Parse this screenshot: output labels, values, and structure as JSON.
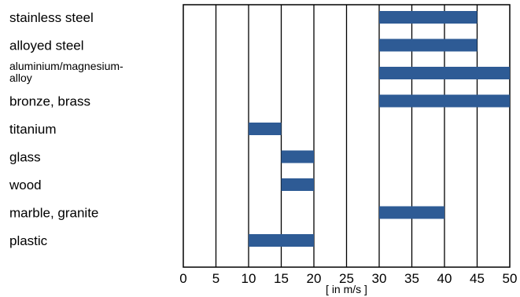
{
  "chart_data": {
    "type": "bar",
    "orientation": "horizontal",
    "bar_style": "range",
    "categories": [
      "stainless steel",
      "alloyed steel",
      "aluminium/magnesium-alloy",
      "bronze, brass",
      "titanium",
      "glass",
      "wood",
      "marble, granite",
      "plastic"
    ],
    "ranges": [
      [
        30,
        45
      ],
      [
        30,
        45
      ],
      [
        30,
        50
      ],
      [
        30,
        50
      ],
      [
        10,
        15
      ],
      [
        15,
        20
      ],
      [
        15,
        20
      ],
      [
        30,
        40
      ],
      [
        10,
        20
      ]
    ],
    "x_ticks": [
      0,
      5,
      10,
      15,
      20,
      25,
      30,
      35,
      40,
      45,
      50
    ],
    "xlim": [
      0,
      50
    ],
    "xlabel": "[ in m/s ]",
    "title": "",
    "ylabel": "",
    "grid": "vertical",
    "bar_color": "#2e5b95"
  }
}
